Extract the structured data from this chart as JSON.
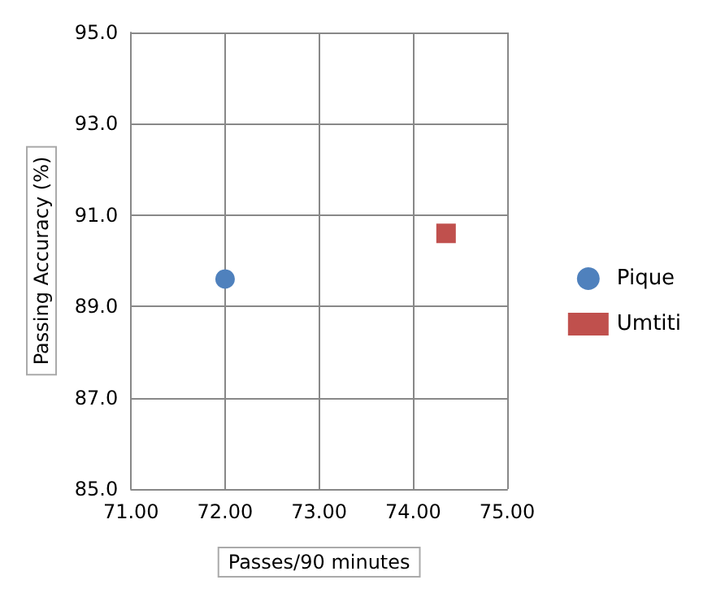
{
  "chart_data": {
    "type": "scatter",
    "xlabel": "Passes/90 minutes",
    "ylabel": "Passing Accuracy (%)",
    "xlim": [
      71,
      75
    ],
    "xticks": [
      {
        "value": 71,
        "label": "71.00"
      },
      {
        "value": 72,
        "label": "72.00"
      },
      {
        "value": 73,
        "label": "73.00"
      },
      {
        "value": 74,
        "label": "74.00"
      },
      {
        "value": 75,
        "label": "75.00"
      }
    ],
    "ylim": [
      85,
      95
    ],
    "yticks": [
      {
        "value": 85,
        "label": "85.0"
      },
      {
        "value": 87,
        "label": "87.0"
      },
      {
        "value": 89,
        "label": "89.0"
      },
      {
        "value": 91,
        "label": "91.0"
      },
      {
        "value": 93,
        "label": "93.0"
      },
      {
        "value": 95,
        "label": "95.0"
      }
    ],
    "grid": true,
    "legend": "right",
    "series": [
      {
        "name": "Pique",
        "color": "#4f81bd",
        "marker": "circle",
        "x": [
          72.0
        ],
        "values": [
          89.6
        ]
      },
      {
        "name": "Umtiti",
        "color": "#c0504d",
        "marker": "square",
        "x": [
          74.35
        ],
        "values": [
          90.6
        ]
      }
    ]
  }
}
